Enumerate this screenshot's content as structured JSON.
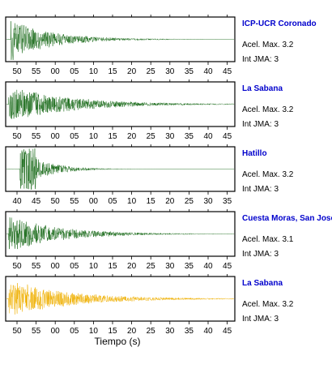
{
  "chart_data": [
    {
      "type": "line",
      "station": "ICP-UCR Coronado",
      "accel": "Acel. Max. 3.2",
      "jma": "Int JMA: 3",
      "tick_labels": [
        "50",
        "55",
        "00",
        "05",
        "10",
        "15",
        "20",
        "25",
        "30",
        "35",
        "40",
        "45"
      ],
      "color": "#1a6b1a",
      "waveform": {
        "onset": 0.02,
        "amplitude": 1.0,
        "decay": 5.5,
        "spike": 0.01
      }
    },
    {
      "type": "line",
      "station": "La Sabana",
      "accel": "Acel. Max. 3.2",
      "jma": "Int JMA: 3",
      "tick_labels": [
        "50",
        "55",
        "00",
        "05",
        "10",
        "15",
        "20",
        "25",
        "30",
        "35",
        "40",
        "45"
      ],
      "color": "#1a6b1a",
      "waveform": {
        "onset": 0.01,
        "amplitude": 0.95,
        "decay": 3.8,
        "spike": 0.0
      }
    },
    {
      "type": "line",
      "station": "Hatillo",
      "accel": "Acel. Max. 3.2",
      "jma": "Int JMA: 3",
      "tick_labels": [
        "40",
        "45",
        "50",
        "55",
        "00",
        "05",
        "10",
        "15",
        "20",
        "25",
        "30",
        "35"
      ],
      "color": "#1a6b1a",
      "waveform": {
        "onset": 0.06,
        "amplitude": 1.0,
        "decay": 9.0,
        "spike": 0.07
      }
    },
    {
      "type": "line",
      "station": "Cuesta Moras, San José",
      "accel": "Acel. Max. 3.1",
      "jma": "Int JMA: 3",
      "tick_labels": [
        "50",
        "55",
        "00",
        "05",
        "10",
        "15",
        "20",
        "25",
        "30",
        "35",
        "40",
        "45"
      ],
      "color": "#1a6b1a",
      "waveform": {
        "onset": 0.01,
        "amplitude": 0.9,
        "decay": 4.5,
        "spike": 0.0
      }
    },
    {
      "type": "line",
      "station": "La Sabana",
      "accel": "Acel. Max. 3.2",
      "jma": "Int JMA: 3",
      "tick_labels": [
        "50",
        "55",
        "00",
        "05",
        "10",
        "15",
        "20",
        "25",
        "30",
        "35",
        "40",
        "45"
      ],
      "color": "#f0b000",
      "waveform": {
        "onset": 0.01,
        "amplitude": 0.95,
        "decay": 3.8,
        "spike": 0.0
      }
    }
  ],
  "xlabel": "Tiempo (s)"
}
